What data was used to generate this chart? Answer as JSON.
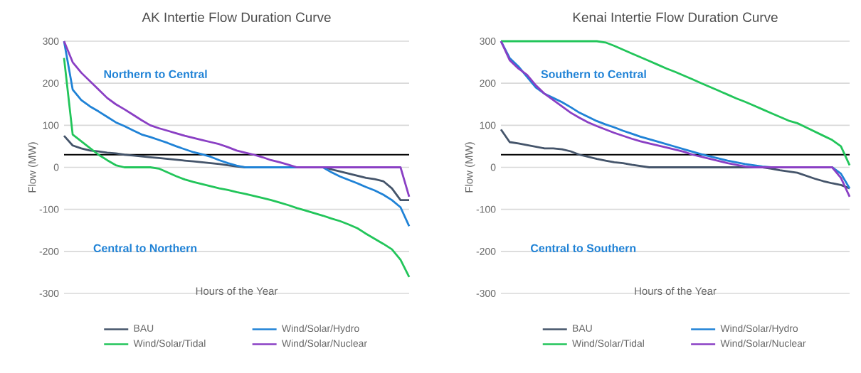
{
  "chart_data": [
    {
      "type": "line",
      "title": "AK Intertie Flow Duration Curve",
      "xlabel": "Hours of the Year",
      "ylabel": "Flow (MW)",
      "categories": [
        null,
        null,
        null,
        null,
        null,
        null,
        null,
        null,
        null,
        null,
        null,
        null,
        null,
        null,
        null,
        null,
        null,
        null,
        null,
        null,
        null,
        null,
        null,
        null,
        null,
        null,
        null,
        null,
        null,
        null,
        null,
        null,
        null,
        null,
        null,
        null,
        null,
        null,
        null,
        null,
        null
      ],
      "series": [
        {
          "name": "BAU",
          "color": "#44546a",
          "values": [
            75,
            52,
            45,
            40,
            38,
            35,
            33,
            30,
            28,
            26,
            24,
            22,
            20,
            18,
            16,
            14,
            12,
            10,
            8,
            5,
            2,
            0,
            0,
            0,
            0,
            0,
            0,
            0,
            0,
            0,
            0,
            -5,
            -10,
            -15,
            -20,
            -25,
            -28,
            -33,
            -50,
            -78,
            -78
          ]
        },
        {
          "name": "Wind/Solar/Hydro",
          "color": "#1f82d6",
          "values": [
            300,
            185,
            160,
            145,
            133,
            120,
            107,
            98,
            88,
            78,
            72,
            65,
            58,
            50,
            43,
            36,
            31,
            25,
            17,
            10,
            4,
            0,
            0,
            0,
            0,
            0,
            0,
            0,
            0,
            0,
            0,
            -12,
            -22,
            -30,
            -38,
            -47,
            -55,
            -65,
            -78,
            -95,
            -140
          ]
        },
        {
          "name": "Wind/Solar/Tidal",
          "color": "#22c55a",
          "values": [
            260,
            78,
            62,
            46,
            30,
            17,
            5,
            0,
            0,
            0,
            0,
            -3,
            -12,
            -21,
            -29,
            -35,
            -40,
            -45,
            -50,
            -54,
            -59,
            -63,
            -68,
            -73,
            -78,
            -84,
            -90,
            -97,
            -103,
            -109,
            -115,
            -122,
            -128,
            -136,
            -145,
            -158,
            -170,
            -182,
            -195,
            -220,
            -261
          ]
        },
        {
          "name": "Wind/Solar/Nuclear",
          "color": "#8a3fc4",
          "values": [
            300,
            250,
            225,
            205,
            185,
            165,
            150,
            138,
            125,
            112,
            100,
            93,
            87,
            81,
            75,
            70,
            65,
            60,
            55,
            48,
            40,
            35,
            30,
            24,
            17,
            12,
            6,
            0,
            0,
            0,
            0,
            0,
            0,
            0,
            0,
            0,
            0,
            0,
            0,
            0,
            -70
          ]
        }
      ],
      "ylim": [
        -300,
        300
      ],
      "yticks": [
        -300,
        -200,
        -100,
        0,
        100,
        200,
        300
      ],
      "grid": "y",
      "legend": "bottom",
      "ref_lines": [
        {
          "axis": "y",
          "value": 30,
          "color": "#000000"
        }
      ],
      "annotations": [
        "Northern to Central",
        "Central to Northern"
      ]
    },
    {
      "type": "line",
      "title": "Kenai Intertie Flow Duration Curve",
      "xlabel": "Hours of the Year",
      "ylabel": "Flow (MW)",
      "categories": [
        null,
        null,
        null,
        null,
        null,
        null,
        null,
        null,
        null,
        null,
        null,
        null,
        null,
        null,
        null,
        null,
        null,
        null,
        null,
        null,
        null,
        null,
        null,
        null,
        null,
        null,
        null,
        null,
        null,
        null,
        null,
        null,
        null,
        null,
        null,
        null,
        null,
        null,
        null,
        null,
        null
      ],
      "series": [
        {
          "name": "BAU",
          "color": "#44546a",
          "values": [
            90,
            60,
            57,
            53,
            49,
            45,
            45,
            43,
            38,
            30,
            25,
            20,
            16,
            12,
            10,
            6,
            3,
            0,
            0,
            0,
            0,
            0,
            0,
            0,
            0,
            0,
            0,
            0,
            0,
            0,
            0,
            -3,
            -7,
            -10,
            -13,
            -20,
            -27,
            -33,
            -38,
            -42,
            -50
          ]
        },
        {
          "name": "Wind/Solar/Hydro",
          "color": "#1f82d6",
          "values": [
            300,
            260,
            240,
            215,
            190,
            175,
            165,
            155,
            143,
            130,
            120,
            110,
            102,
            95,
            87,
            80,
            73,
            67,
            61,
            55,
            49,
            43,
            37,
            31,
            26,
            21,
            16,
            12,
            8,
            5,
            2,
            0,
            0,
            0,
            0,
            0,
            0,
            0,
            0,
            -15,
            -50
          ]
        },
        {
          "name": "Wind/Solar/Tidal",
          "color": "#22c55a",
          "values": [
            300,
            300,
            300,
            300,
            300,
            300,
            300,
            300,
            300,
            300,
            300,
            300,
            297,
            289,
            280,
            271,
            262,
            253,
            244,
            235,
            227,
            218,
            209,
            200,
            191,
            182,
            173,
            164,
            156,
            147,
            138,
            129,
            120,
            111,
            105,
            95,
            85,
            75,
            65,
            50,
            5
          ]
        },
        {
          "name": "Wind/Solar/Nuclear",
          "color": "#8a3fc4",
          "values": [
            300,
            255,
            235,
            220,
            195,
            175,
            160,
            145,
            130,
            118,
            107,
            98,
            90,
            82,
            75,
            68,
            62,
            57,
            52,
            47,
            42,
            37,
            30,
            25,
            20,
            15,
            10,
            6,
            2,
            0,
            0,
            0,
            0,
            0,
            0,
            0,
            0,
            0,
            0,
            -25,
            -70
          ]
        }
      ],
      "ylim": [
        -300,
        300
      ],
      "yticks": [
        -300,
        -200,
        -100,
        0,
        100,
        200,
        300
      ],
      "grid": "y",
      "legend": "bottom",
      "ref_lines": [
        {
          "axis": "y",
          "value": 30,
          "color": "#000000"
        }
      ],
      "annotations": [
        "Southern to Central",
        "Central to Southern"
      ]
    }
  ]
}
